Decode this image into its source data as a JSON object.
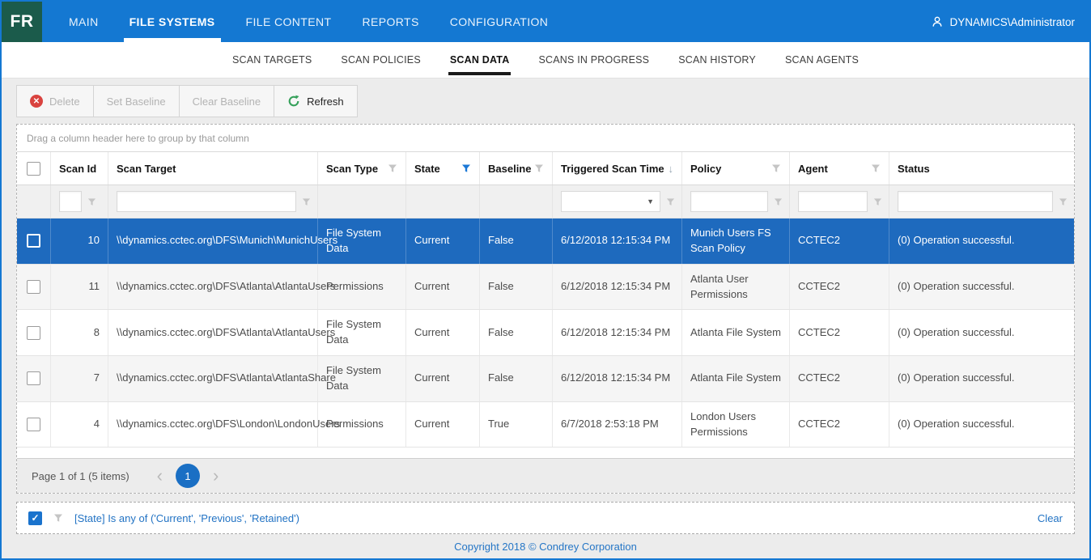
{
  "app": {
    "logo_text": "FR",
    "nav": [
      {
        "label": "MAIN",
        "active": false
      },
      {
        "label": "FILE SYSTEMS",
        "active": true
      },
      {
        "label": "FILE CONTENT",
        "active": false
      },
      {
        "label": "REPORTS",
        "active": false
      },
      {
        "label": "CONFIGURATION",
        "active": false
      }
    ],
    "user": "DYNAMICS\\Administrator"
  },
  "subnav": {
    "items": [
      {
        "label": "SCAN TARGETS",
        "active": false
      },
      {
        "label": "SCAN POLICIES",
        "active": false
      },
      {
        "label": "SCAN DATA",
        "active": true
      },
      {
        "label": "SCANS IN PROGRESS",
        "active": false
      },
      {
        "label": "SCAN HISTORY",
        "active": false
      },
      {
        "label": "SCAN AGENTS",
        "active": false
      }
    ]
  },
  "toolbar": {
    "delete_label": "Delete",
    "set_baseline_label": "Set Baseline",
    "clear_baseline_label": "Clear Baseline",
    "refresh_label": "Refresh"
  },
  "grid": {
    "group_hint": "Drag a column header here to group by that column",
    "columns": [
      {
        "label": "Scan Id"
      },
      {
        "label": "Scan Target"
      },
      {
        "label": "Scan Type",
        "filter": "inactive"
      },
      {
        "label": "State",
        "filter": "active"
      },
      {
        "label": "Baseline",
        "filter": "inactive"
      },
      {
        "label": "Triggered Scan Time",
        "sorted": "asc"
      },
      {
        "label": "Policy",
        "filter": "inactive"
      },
      {
        "label": "Agent",
        "filter": "inactive"
      },
      {
        "label": "Status"
      }
    ],
    "rows": [
      {
        "selected": true,
        "scan_id": "10",
        "scan_target": "\\\\dynamics.cctec.org\\DFS\\Munich\\MunichUsers",
        "scan_type": "File System Data",
        "state": "Current",
        "baseline": "False",
        "triggered_scan_time": "6/12/2018 12:15:34 PM",
        "policy": "Munich Users FS Scan Policy",
        "agent": "CCTEC2",
        "status": "(0) Operation successful."
      },
      {
        "selected": false,
        "scan_id": "11",
        "scan_target": "\\\\dynamics.cctec.org\\DFS\\Atlanta\\AtlantaUsers",
        "scan_type": "Permissions",
        "state": "Current",
        "baseline": "False",
        "triggered_scan_time": "6/12/2018 12:15:34 PM",
        "policy": "Atlanta User Permissions",
        "agent": "CCTEC2",
        "status": "(0) Operation successful."
      },
      {
        "selected": false,
        "scan_id": "8",
        "scan_target": "\\\\dynamics.cctec.org\\DFS\\Atlanta\\AtlantaUsers",
        "scan_type": "File System Data",
        "state": "Current",
        "baseline": "False",
        "triggered_scan_time": "6/12/2018 12:15:34 PM",
        "policy": "Atlanta File System",
        "agent": "CCTEC2",
        "status": "(0) Operation successful."
      },
      {
        "selected": false,
        "scan_id": "7",
        "scan_target": "\\\\dynamics.cctec.org\\DFS\\Atlanta\\AtlantaShare",
        "scan_type": "File System Data",
        "state": "Current",
        "baseline": "False",
        "triggered_scan_time": "6/12/2018 12:15:34 PM",
        "policy": "Atlanta File System",
        "agent": "CCTEC2",
        "status": "(0) Operation successful."
      },
      {
        "selected": false,
        "scan_id": "4",
        "scan_target": "\\\\dynamics.cctec.org\\DFS\\London\\LondonUsers",
        "scan_type": "Permissions",
        "state": "Current",
        "baseline": "True",
        "triggered_scan_time": "6/7/2018 2:53:18 PM",
        "policy": "London Users Permissions",
        "agent": "CCTEC2",
        "status": "(0) Operation successful."
      }
    ],
    "pagination": {
      "summary": "Page 1 of 1 (5 items)",
      "current_page": "1"
    }
  },
  "filter_bar": {
    "enabled": true,
    "text": "[State] Is any of ('Current', 'Previous', 'Retained')",
    "clear_label": "Clear"
  },
  "footer": {
    "copyright": "Copyright 2018 © Condrey Corporation"
  },
  "colors": {
    "header_blue": "#1478d2",
    "logo_green": "#1b5b4b",
    "selected_row": "#1e6abe",
    "accent_link": "#2273c4",
    "filter_active_blue": "#1b78d6",
    "refresh_green": "#35a05a",
    "delete_red": "#d9433f"
  }
}
